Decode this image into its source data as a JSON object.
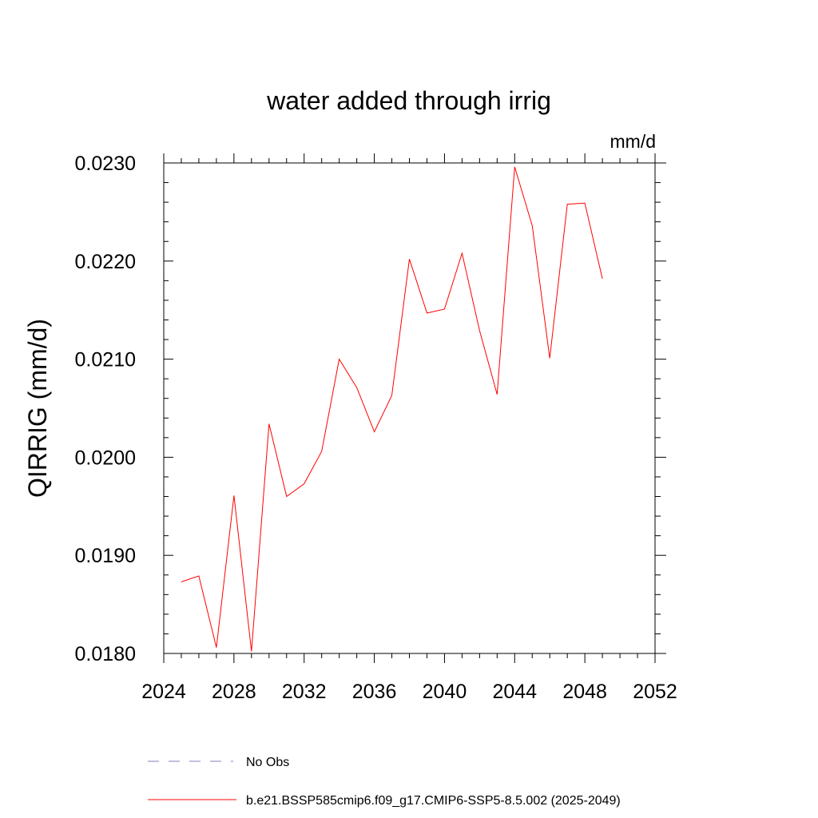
{
  "chart_data": {
    "type": "line",
    "title": "water added through irrig",
    "units_label": "mm/d",
    "ylabel": "QIRRIG  (mm/d)",
    "xlabel": "",
    "xlim": [
      2024,
      2052
    ],
    "ylim": [
      0.018,
      0.023
    ],
    "xticks": [
      2024,
      2028,
      2032,
      2036,
      2040,
      2044,
      2048,
      2052
    ],
    "xtick_labels": [
      "2024",
      "2028",
      "2032",
      "2036",
      "2040",
      "2044",
      "2048",
      "2052"
    ],
    "yticks": [
      0.018,
      0.019,
      0.02,
      0.021,
      0.022,
      0.023
    ],
    "ytick_labels": [
      "0.0180",
      "0.0190",
      "0.0200",
      "0.0210",
      "0.0220",
      "0.0230"
    ],
    "grid": false,
    "legend_position": "bottom",
    "series": [
      {
        "name": "No Obs",
        "color": "#8080c0",
        "style": "dashed",
        "x": [],
        "values": []
      },
      {
        "name": "b.e21.BSSP585cmip6.f09_g17.CMIP6-SSP5-8.5.002 (2025-2049)",
        "color": "#ff0000",
        "style": "solid",
        "x": [
          2025,
          2026,
          2027,
          2028,
          2029,
          2030,
          2031,
          2032,
          2033,
          2034,
          2035,
          2036,
          2037,
          2038,
          2039,
          2040,
          2041,
          2042,
          2043,
          2044,
          2045,
          2046,
          2047,
          2048,
          2049
        ],
        "values": [
          0.01873,
          0.01879,
          0.01806,
          0.01961,
          0.01802,
          0.02034,
          0.0196,
          0.01973,
          0.02006,
          0.021,
          0.02071,
          0.02026,
          0.02063,
          0.02202,
          0.02147,
          0.02151,
          0.02208,
          0.02129,
          0.02064,
          0.02296,
          0.02236,
          0.02101,
          0.02258,
          0.02259,
          0.02182
        ]
      }
    ]
  }
}
